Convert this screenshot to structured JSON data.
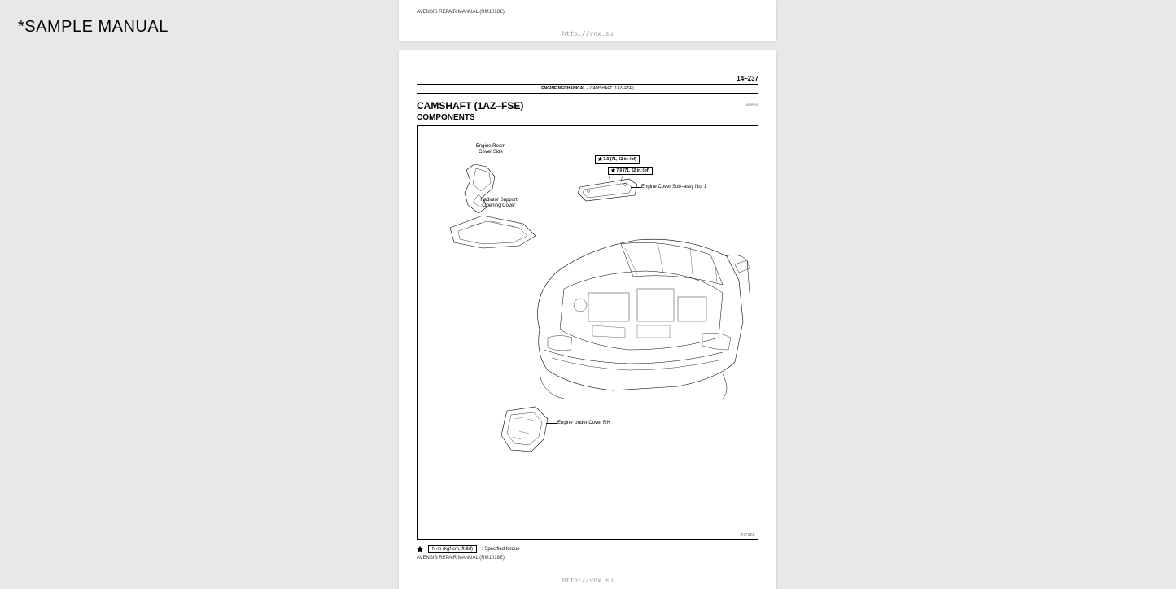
{
  "watermark": "*SAMPLE MANUAL",
  "page_top": {
    "footer": "AVENSIS REPAIR MANUAL   (RM1018E)",
    "link": "http://vnx.su"
  },
  "page_main": {
    "page_number": "14–237",
    "section_bold": "ENGINE MECHANICAL",
    "section_sep": "   –   ",
    "section_rest": "CAMSHAFT (1AZ–FSE)",
    "title": "CAMSHAFT (1AZ–FSE)",
    "subtitle": "COMPONENTS",
    "small_code": "1409P-01",
    "labels": {
      "engine_room_cover": "Engine Room\nCover Side",
      "radiator_support": "Radiator Support\nOpening Cover",
      "engine_cover_sub": "Engine Cover Sub–assy No. 1",
      "engine_under_cover": "Engine Under Cover RH"
    },
    "torque": {
      "t1": "7.0 (71, 62 in.·lbf)",
      "t2": "7.0 (71, 62 in.·lbf)"
    },
    "diagram_code": "A77322",
    "legend": {
      "box": "N·m (kgf·cm, ft·lbf)",
      "text": ": Specified torque"
    },
    "footer": "AVENSIS REPAIR MANUAL   (RM1018E)",
    "link": "http://vnx.su"
  },
  "colors": {
    "bg": "#e8e8e8",
    "paper": "#ffffff",
    "ink": "#000000",
    "muted": "#999999"
  }
}
